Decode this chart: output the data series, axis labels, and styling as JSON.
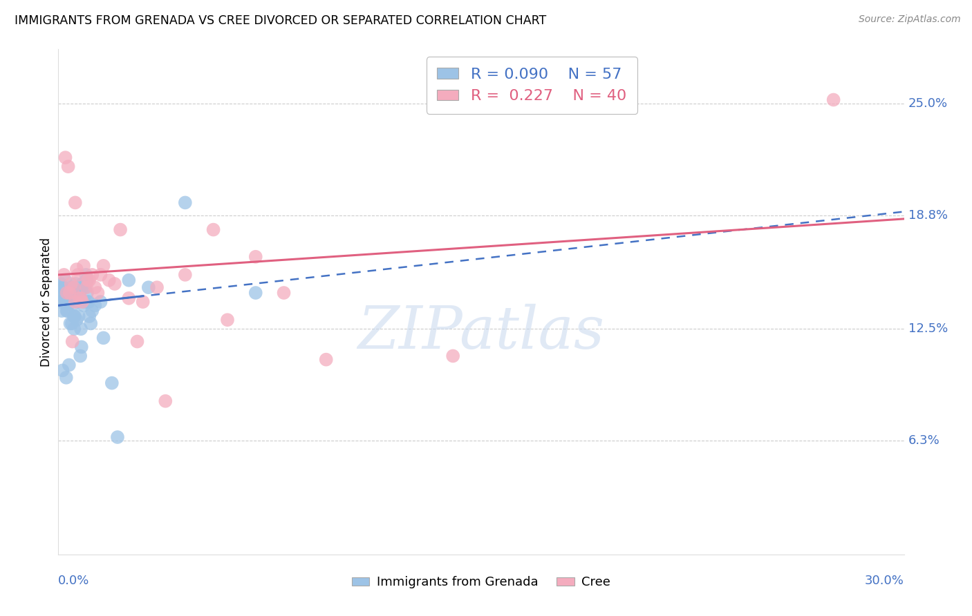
{
  "title": "IMMIGRANTS FROM GRENADA VS CREE DIVORCED OR SEPARATED CORRELATION CHART",
  "source": "Source: ZipAtlas.com",
  "ylabel": "Divorced or Separated",
  "xlim": [
    0.0,
    30.0
  ],
  "ylim": [
    0.0,
    28.0
  ],
  "xtick_left": "0.0%",
  "xtick_right": "30.0%",
  "yticks": [
    6.3,
    12.5,
    18.8,
    25.0
  ],
  "ytick_labels": [
    "6.3%",
    "12.5%",
    "18.8%",
    "25.0%"
  ],
  "watermark_text": "ZIPatlas",
  "R1": "0.090",
  "N1": "57",
  "R2": "0.227",
  "N2": "40",
  "color_blue": "#9DC3E6",
  "color_pink": "#F4ACBE",
  "line_blue": "#4472C4",
  "line_pink": "#E06080",
  "legend_label1": "Immigrants from Grenada",
  "legend_label2": "Cree",
  "blue_x": [
    0.18,
    0.25,
    0.1,
    0.3,
    0.4,
    0.45,
    0.5,
    0.55,
    0.6,
    0.65,
    0.7,
    0.75,
    0.8,
    0.85,
    0.9,
    0.95,
    1.0,
    1.05,
    1.1,
    1.15,
    1.2,
    0.2,
    0.35,
    0.48,
    0.58,
    0.68,
    0.78,
    0.88,
    0.98,
    1.08,
    0.22,
    0.32,
    0.42,
    0.52,
    0.62,
    0.72,
    0.82,
    0.92,
    1.02,
    0.15,
    0.28,
    0.38,
    1.5,
    1.9,
    2.5,
    3.2,
    4.5,
    7.0,
    2.1,
    1.6,
    0.05,
    0.12,
    0.08,
    0.06,
    1.3,
    0.44,
    0.56
  ],
  "blue_y": [
    14.8,
    15.2,
    14.0,
    13.5,
    14.2,
    14.8,
    13.8,
    13.2,
    14.5,
    13.0,
    14.0,
    14.5,
    12.5,
    15.0,
    13.8,
    14.8,
    15.2,
    14.0,
    13.2,
    12.8,
    13.5,
    14.5,
    14.0,
    12.8,
    13.2,
    14.5,
    11.0,
    14.8,
    15.5,
    14.0,
    14.2,
    13.5,
    12.8,
    14.5,
    15.0,
    13.2,
    11.5,
    14.0,
    14.5,
    10.2,
    9.8,
    10.5,
    14.0,
    9.5,
    15.2,
    14.8,
    19.5,
    14.5,
    6.5,
    12.0,
    14.8,
    13.5,
    15.0,
    14.2,
    13.8,
    14.0,
    12.5
  ],
  "pink_x": [
    0.2,
    0.3,
    0.45,
    0.55,
    0.65,
    0.8,
    0.9,
    1.1,
    1.3,
    1.5,
    2.0,
    2.5,
    3.5,
    4.5,
    5.5,
    7.0,
    8.0,
    0.35,
    0.6,
    0.75,
    1.0,
    1.2,
    1.8,
    2.8,
    0.4,
    0.7,
    1.6,
    2.2,
    6.0,
    14.0,
    27.5,
    0.25,
    0.85,
    1.05,
    3.8,
    0.5,
    0.6,
    1.4,
    9.5,
    3.0
  ],
  "pink_y": [
    15.5,
    14.5,
    15.0,
    14.8,
    15.8,
    14.2,
    16.0,
    15.2,
    14.8,
    15.5,
    15.0,
    14.2,
    14.8,
    15.5,
    18.0,
    16.5,
    14.5,
    21.5,
    19.5,
    14.2,
    14.8,
    15.5,
    15.2,
    11.8,
    14.5,
    15.5,
    16.0,
    18.0,
    13.0,
    11.0,
    25.2,
    22.0,
    14.0,
    15.2,
    8.5,
    11.8,
    14.0,
    14.5,
    10.8,
    14.0
  ],
  "blue_line_x0": 0.0,
  "blue_line_y0": 13.8,
  "blue_line_x1": 30.0,
  "blue_line_y1": 19.0,
  "pink_line_x0": 0.0,
  "pink_line_y0": 15.5,
  "pink_line_x1": 30.0,
  "pink_line_y1": 18.6
}
